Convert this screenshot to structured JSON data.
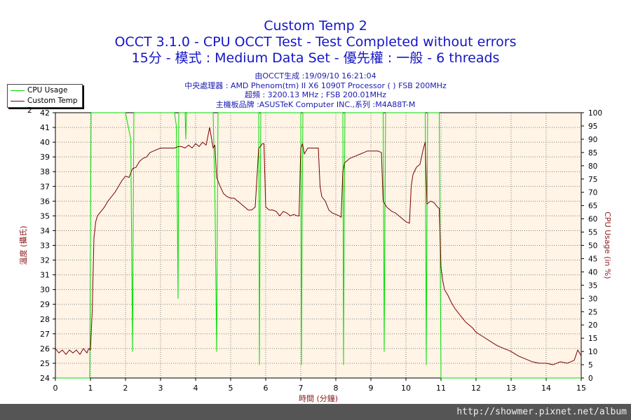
{
  "titles": {
    "line1": "Custom Temp 2",
    "line2": "OCCT 3.1.0 - CPU OCCT Test - Test Completed without errors",
    "line3": "15分 - 模式 : Medium Data Set - 優先權 : 一般 - 6 threads"
  },
  "info": {
    "line1": "由OCCT生成 :19/09/10 16:21:04",
    "line2": "中央處理器 : AMD Phenom(tm) II X6 1090T Processor (    ) FSB 200MHz",
    "line3": "超頻 : 3200.13 MHz ; FSB 200.01MHz",
    "line4": "主機板品牌 :ASUSTeK Computer INC.,系列 :M4A88T-M"
  },
  "legend": {
    "cpu_usage": "CPU Usage",
    "custom_temp": "Custom Temp 2"
  },
  "colors": {
    "temp_line": "#7a0000",
    "usage_line": "#00dd00",
    "plot_bg": "#fff4e6",
    "grid": "#808080",
    "title": "#1515c8",
    "axis_label": "#8b1a1a"
  },
  "footer": {
    "url": "http://showmer.pixnet.net/album"
  },
  "chart_data": {
    "type": "line",
    "xlabel": "時間 (分鐘)",
    "ylabel": "溫度 (攝氏)",
    "y2label": "CPU Usage (in %)",
    "xlim": [
      0,
      15
    ],
    "ylim": [
      24,
      42
    ],
    "y2lim": [
      0,
      100
    ],
    "x_ticks": [
      0,
      1,
      2,
      3,
      4,
      5,
      6,
      7,
      8,
      9,
      10,
      11,
      12,
      13,
      14,
      15
    ],
    "y_ticks": [
      24,
      25,
      26,
      27,
      28,
      29,
      30,
      31,
      32,
      33,
      34,
      35,
      36,
      37,
      38,
      39,
      40,
      41,
      42
    ],
    "y2_ticks": [
      0,
      5,
      10,
      15,
      20,
      25,
      30,
      35,
      40,
      45,
      50,
      55,
      60,
      65,
      70,
      75,
      80,
      85,
      90,
      95,
      100
    ],
    "grid": true,
    "legend_position": "top-left",
    "series": [
      {
        "name": "Custom Temp 2",
        "axis": "left",
        "x": [
          0,
          0.1,
          0.2,
          0.3,
          0.4,
          0.5,
          0.6,
          0.7,
          0.8,
          0.9,
          0.95,
          1.0,
          1.05,
          1.1,
          1.15,
          1.2,
          1.3,
          1.4,
          1.5,
          1.6,
          1.7,
          1.8,
          1.9,
          2.0,
          2.1,
          2.2,
          2.3,
          2.4,
          2.5,
          2.6,
          2.7,
          2.8,
          2.9,
          3.0,
          3.1,
          3.2,
          3.3,
          3.4,
          3.5,
          3.6,
          3.7,
          3.8,
          3.9,
          4.0,
          4.1,
          4.2,
          4.3,
          4.4,
          4.5,
          4.55,
          4.6,
          4.7,
          4.8,
          4.9,
          5.0,
          5.1,
          5.2,
          5.3,
          5.4,
          5.5,
          5.6,
          5.7,
          5.8,
          5.85,
          5.9,
          5.95,
          6.0,
          6.1,
          6.2,
          6.3,
          6.4,
          6.5,
          6.6,
          6.7,
          6.8,
          6.9,
          6.95,
          7.0,
          7.05,
          7.1,
          7.2,
          7.3,
          7.4,
          7.5,
          7.55,
          7.6,
          7.7,
          7.8,
          7.9,
          8.0,
          8.1,
          8.15,
          8.2,
          8.25,
          8.3,
          8.4,
          8.5,
          8.6,
          8.7,
          8.8,
          8.9,
          9.0,
          9.1,
          9.2,
          9.3,
          9.35,
          9.4,
          9.45,
          9.5,
          9.6,
          9.7,
          9.8,
          9.9,
          10.0,
          10.1,
          10.15,
          10.2,
          10.3,
          10.4,
          10.5,
          10.55,
          10.6,
          10.7,
          10.8,
          10.9,
          10.95,
          11.0,
          11.05,
          11.1,
          11.2,
          11.3,
          11.4,
          11.5,
          11.6,
          11.7,
          11.8,
          11.9,
          12.0,
          12.2,
          12.4,
          12.6,
          12.8,
          13.0,
          13.2,
          13.4,
          13.6,
          13.8,
          14.0,
          14.2,
          14.4,
          14.6,
          14.8,
          14.9,
          15.0
        ],
        "y": [
          26.0,
          25.7,
          25.9,
          25.6,
          25.9,
          25.7,
          25.9,
          25.6,
          26.0,
          25.7,
          26.0,
          25.9,
          28.5,
          33.5,
          34.6,
          35.0,
          35.3,
          35.6,
          36.0,
          36.3,
          36.6,
          37.0,
          37.4,
          37.7,
          37.6,
          38.2,
          38.3,
          38.7,
          38.9,
          39.0,
          39.3,
          39.4,
          39.5,
          39.6,
          39.6,
          39.6,
          39.6,
          39.6,
          39.7,
          39.7,
          39.6,
          39.8,
          39.6,
          39.9,
          39.7,
          40.0,
          39.8,
          41.0,
          39.6,
          39.8,
          37.6,
          37.0,
          36.5,
          36.3,
          36.2,
          36.2,
          36.0,
          35.8,
          35.6,
          35.4,
          35.4,
          35.6,
          39.6,
          39.7,
          39.9,
          39.9,
          35.6,
          35.4,
          35.4,
          35.3,
          35.0,
          35.3,
          35.2,
          35.0,
          35.1,
          35.0,
          35.0,
          39.6,
          39.9,
          39.2,
          39.6,
          39.6,
          39.6,
          39.6,
          37.0,
          36.3,
          36.0,
          35.4,
          35.2,
          35.1,
          35.0,
          34.9,
          38.0,
          38.6,
          38.7,
          38.9,
          39.0,
          39.1,
          39.2,
          39.3,
          39.4,
          39.4,
          39.4,
          39.4,
          39.3,
          36.0,
          35.8,
          35.6,
          35.5,
          35.3,
          35.2,
          35.0,
          34.8,
          34.6,
          34.5,
          37.0,
          37.8,
          38.3,
          38.5,
          39.6,
          40.0,
          35.8,
          36.0,
          35.9,
          35.6,
          35.5,
          31.5,
          30.6,
          30.0,
          29.6,
          29.1,
          28.7,
          28.4,
          28.1,
          27.8,
          27.6,
          27.4,
          27.1,
          26.8,
          26.5,
          26.2,
          26.0,
          25.8,
          25.5,
          25.3,
          25.1,
          25.0,
          25.0,
          24.9,
          25.1,
          25.0,
          25.2,
          25.9,
          25.5
        ]
      },
      {
        "name": "CPU Usage",
        "axis": "right",
        "x": [
          0,
          0.98,
          1.0,
          1.02,
          1.04,
          1.06,
          2.0,
          2.15,
          2.2,
          2.22,
          2.24,
          3.4,
          3.45,
          3.48,
          3.5,
          3.52,
          3.7,
          3.72,
          3.74,
          4.5,
          4.55,
          4.6,
          4.62,
          4.64,
          5.8,
          5.82,
          5.84,
          5.86,
          7.0,
          7.02,
          7.04,
          7.06,
          8.2,
          8.22,
          8.24,
          8.26,
          9.35,
          9.38,
          9.4,
          9.42,
          10.55,
          10.58,
          10.6,
          10.62,
          10.95,
          11.0,
          11.02,
          15.0
        ],
        "y": [
          0,
          0,
          50,
          100,
          100,
          100,
          100,
          90,
          10,
          60,
          100,
          100,
          95,
          60,
          30,
          100,
          100,
          90,
          100,
          100,
          70,
          10,
          60,
          100,
          100,
          5,
          60,
          100,
          100,
          5,
          60,
          100,
          100,
          5,
          60,
          100,
          100,
          10,
          60,
          100,
          100,
          5,
          60,
          100,
          100,
          0,
          0,
          0
        ]
      }
    ]
  }
}
